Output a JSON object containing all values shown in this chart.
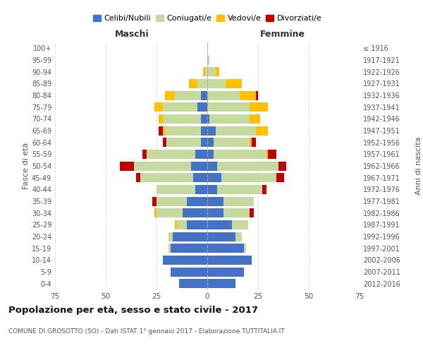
{
  "age_groups": [
    "0-4",
    "5-9",
    "10-14",
    "15-19",
    "20-24",
    "25-29",
    "30-34",
    "35-39",
    "40-44",
    "45-49",
    "50-54",
    "55-59",
    "60-64",
    "65-69",
    "70-74",
    "75-79",
    "80-84",
    "85-89",
    "90-94",
    "95-99",
    "100+"
  ],
  "birth_years": [
    "2012-2016",
    "2007-2011",
    "2002-2006",
    "1997-2001",
    "1992-1996",
    "1987-1991",
    "1982-1986",
    "1977-1981",
    "1972-1976",
    "1967-1971",
    "1962-1966",
    "1957-1961",
    "1952-1956",
    "1947-1951",
    "1942-1946",
    "1937-1941",
    "1932-1936",
    "1927-1931",
    "1922-1926",
    "1917-1921",
    "≤ 1916"
  ],
  "colors": {
    "celibe": "#4472c4",
    "coniugato": "#c5d9a0",
    "vedovo": "#ffc000",
    "divorziato": "#c00000"
  },
  "males": {
    "celibe": [
      14,
      18,
      22,
      18,
      17,
      10,
      12,
      10,
      6,
      7,
      8,
      6,
      3,
      3,
      3,
      5,
      3,
      0,
      0,
      0,
      0
    ],
    "coniugato": [
      0,
      0,
      0,
      1,
      2,
      5,
      13,
      15,
      19,
      26,
      28,
      24,
      17,
      18,
      19,
      17,
      13,
      5,
      1,
      0,
      0
    ],
    "vedovo": [
      0,
      0,
      0,
      0,
      0,
      1,
      1,
      0,
      0,
      0,
      0,
      0,
      0,
      1,
      2,
      4,
      5,
      4,
      1,
      0,
      0
    ],
    "divorziato": [
      0,
      0,
      0,
      0,
      0,
      0,
      0,
      2,
      0,
      2,
      7,
      2,
      2,
      2,
      0,
      0,
      0,
      0,
      0,
      0,
      0
    ]
  },
  "females": {
    "nubile": [
      14,
      18,
      22,
      18,
      14,
      12,
      8,
      8,
      5,
      7,
      5,
      3,
      3,
      4,
      1,
      0,
      0,
      0,
      0,
      0,
      0
    ],
    "coniugata": [
      0,
      0,
      0,
      1,
      3,
      8,
      13,
      15,
      22,
      27,
      30,
      26,
      18,
      20,
      20,
      21,
      16,
      9,
      4,
      1,
      0
    ],
    "vedova": [
      0,
      0,
      0,
      0,
      0,
      0,
      0,
      0,
      0,
      0,
      0,
      1,
      1,
      6,
      5,
      9,
      8,
      8,
      2,
      0,
      0
    ],
    "divorziata": [
      0,
      0,
      0,
      0,
      0,
      0,
      2,
      0,
      2,
      4,
      4,
      4,
      2,
      0,
      0,
      0,
      1,
      0,
      0,
      0,
      0
    ]
  },
  "xlim": 75,
  "title": "Popolazione per età, sesso e stato civile - 2017",
  "subtitle": "COMUNE DI GROSOTTO (SO) - Dati ISTAT 1° gennaio 2017 - Elaborazione TUTTITALIA.IT",
  "ylabel": "Fasce di età",
  "ylabel_right": "Anni di nascita",
  "xlabel_left": "Maschi",
  "xlabel_right": "Femmine",
  "legend_labels": [
    "Celibi/Nubili",
    "Coniugati/e",
    "Vedovi/e",
    "Divorziati/e"
  ],
  "bg_color": "#ffffff",
  "grid_color": "#cccccc"
}
